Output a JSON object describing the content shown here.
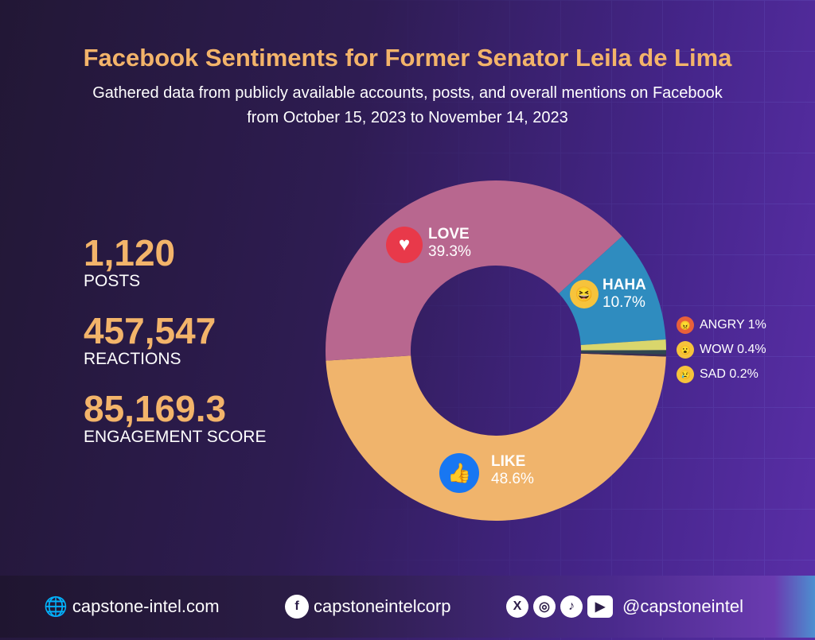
{
  "title": "Facebook Sentiments for Former Senator Leila de Lima",
  "subtitle_line1": "Gathered data from publicly available accounts, posts, and overall mentions on Facebook",
  "subtitle_line2": "from October 15, 2023 to November 14, 2023",
  "stats": [
    {
      "value": "1,120",
      "label": "POSTS"
    },
    {
      "value": "457,547",
      "label": "REACTIONS"
    },
    {
      "value": "85,169.3",
      "label": "ENGAGEMENT SCORE"
    }
  ],
  "chart_data": {
    "type": "pie",
    "donut": true,
    "title": "Facebook Sentiments for Former Senator Leila de Lima",
    "categories": [
      "LIKE",
      "LOVE",
      "HAHA",
      "ANGRY",
      "WOW",
      "SAD"
    ],
    "values": [
      48.6,
      39.3,
      10.7,
      1,
      0.4,
      0.2
    ],
    "labels": [
      "48.6%",
      "39.3%",
      "10.7%",
      "1%",
      "0.4%",
      "0.2%"
    ],
    "colors": [
      "#f0b46c",
      "#b8678f",
      "#2f8cbf",
      "#d9d66c",
      "#2f4650",
      "#3a3050"
    ]
  },
  "legend": [
    {
      "text": "ANGRY 1%",
      "icon": "angry-emoji-icon"
    },
    {
      "text": "WOW 0.4%",
      "icon": "wow-emoji-icon"
    },
    {
      "text": "SAD 0.2%",
      "icon": "sad-emoji-icon"
    }
  ],
  "footer": {
    "website": "capstone-intel.com",
    "facebook": "capstoneintelcorp",
    "handle": "@capstoneintel"
  }
}
